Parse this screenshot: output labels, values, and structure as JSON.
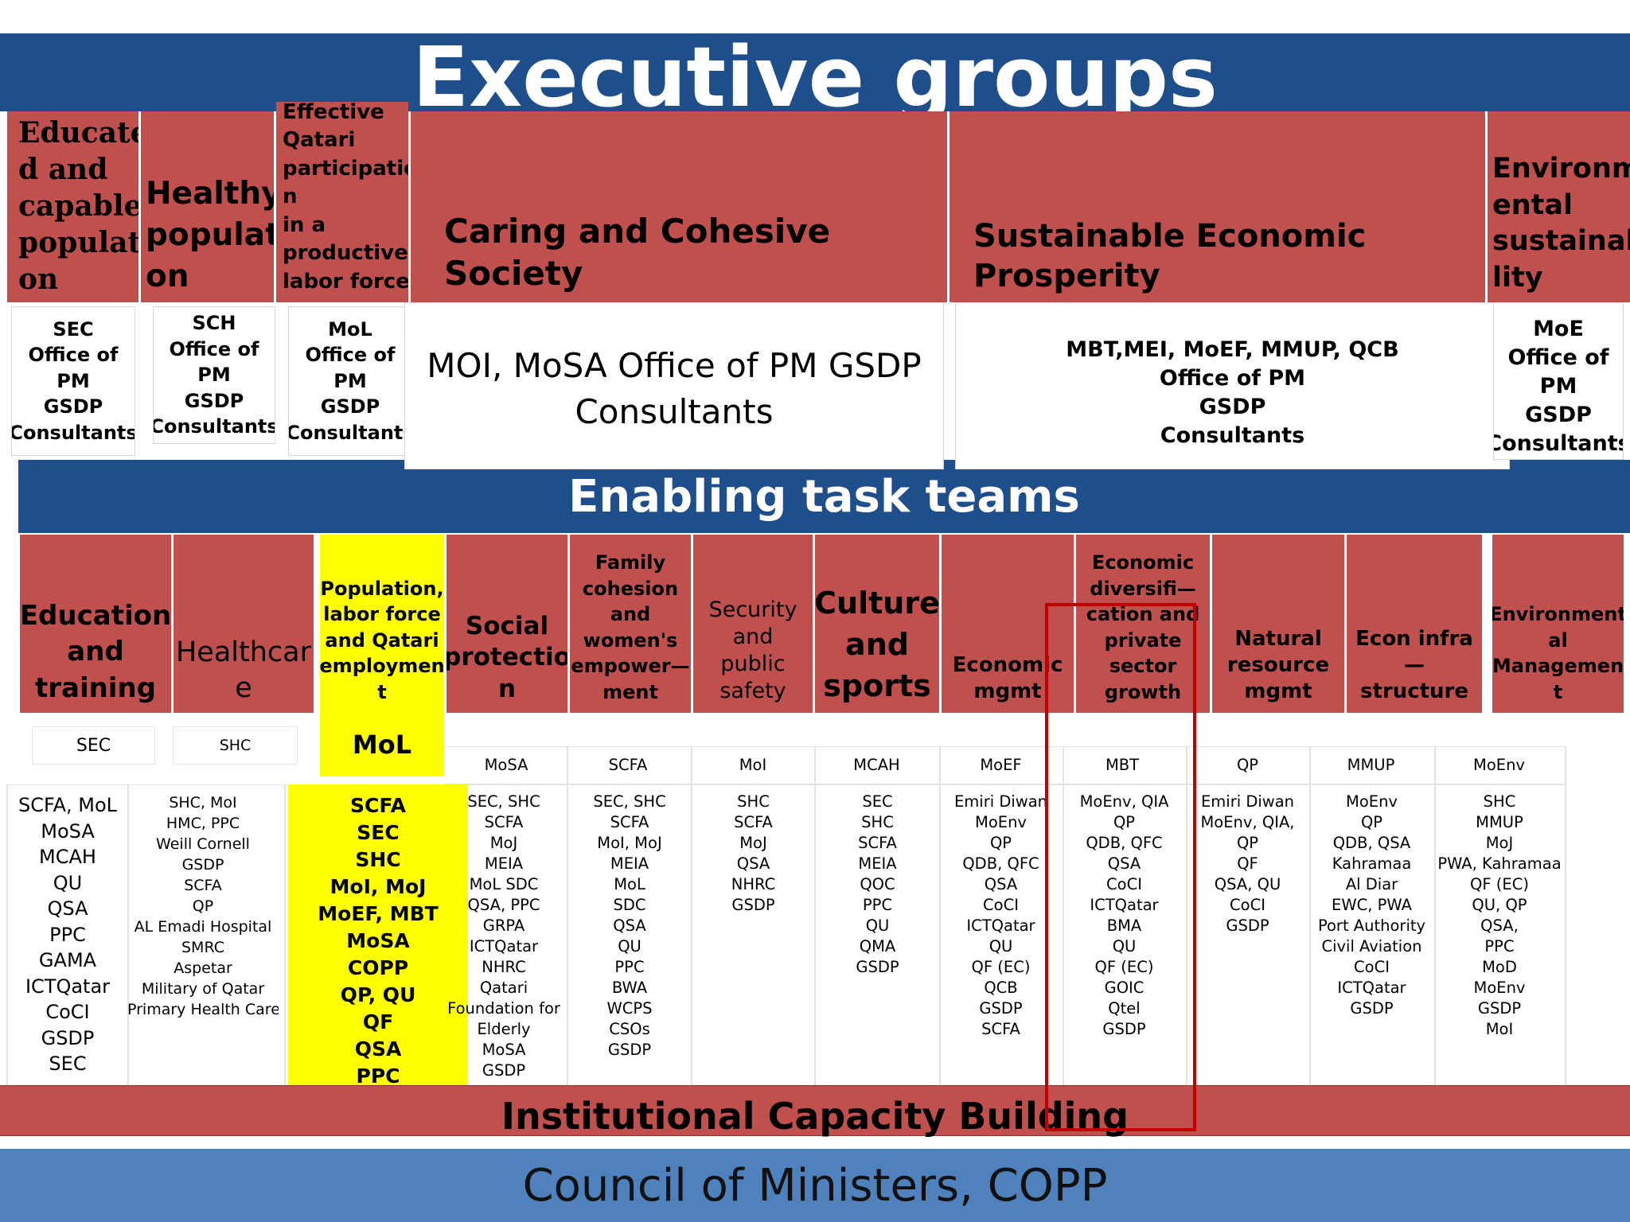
{
  "executive": {
    "title": "Executive groups",
    "groups": [
      {
        "title": [
          "Educate",
          "d and",
          "capable",
          "populati",
          "on"
        ],
        "members": [
          "SEC",
          "Office of",
          "PM",
          "GSDP",
          "Consultants"
        ]
      },
      {
        "title": [
          "Healthy",
          "populati",
          "on"
        ],
        "members": [
          "SCH",
          "Office of",
          "PM",
          "GSDP",
          "Consultants"
        ]
      },
      {
        "title": [
          "Effective",
          "Qatari",
          "participatio",
          "n",
          "in a",
          "productive",
          "labor force"
        ],
        "members": [
          "MoL",
          "Office of",
          "PM",
          "GSDP",
          "Consultants"
        ]
      },
      {
        "title": [
          "Caring and Cohesive Society"
        ],
        "members": [
          "MOI, MoSA Office of PM GSDP",
          "Consultants"
        ]
      },
      {
        "title": [
          "Sustainable Economic Prosperity"
        ],
        "members": [
          "MBT,MEI, MoEF, MMUP, QCB",
          "Office of PM",
          "GSDP",
          "Consultants"
        ]
      },
      {
        "title": [
          "Environm",
          "ental",
          "sustainabi",
          "lity"
        ],
        "members": [
          "MoE",
          "Office of",
          "PM",
          "GSDP",
          "Consultants"
        ]
      }
    ]
  },
  "enabling": {
    "title": "Enabling task teams",
    "teams": [
      {
        "title": [
          "Education",
          "and",
          "training"
        ],
        "lead": "SEC",
        "members": [
          "SCFA, MoL",
          "MoSA",
          "MCAH",
          "QU",
          "QSA",
          "PPC",
          "GAMA",
          "ICTQatar",
          "CoCI",
          "GSDP",
          "SEC"
        ]
      },
      {
        "title": [
          "Healthcar",
          "e"
        ],
        "lead": "SHC",
        "members": [
          "SHC, MoI",
          "HMC, PPC",
          "Weill Cornell",
          "GSDP",
          "SCFA",
          "QP",
          "AL Emadi Hospital",
          "SMRC",
          "Aspetar",
          "Military of Qatar",
          "Primary Health Care"
        ]
      },
      {
        "title": [
          "Population,",
          "labor force",
          "and Qatari",
          "employmen",
          "t"
        ],
        "lead": "MoL",
        "members": [
          "SCFA",
          "SEC",
          "SHC",
          "MoI, MoJ",
          "MoEF, MBT",
          "MoSA",
          "COPP",
          "QP, QU",
          "QF",
          "QSA",
          "PPC"
        ]
      },
      {
        "title": [
          "Social",
          "protectio",
          "n"
        ],
        "lead": "MoSA",
        "members": [
          "SEC, SHC",
          "SCFA",
          "MoJ",
          "MEIA",
          "MoL SDC",
          "QSA, PPC",
          "GRPA",
          "ICTQatar",
          "NHRC",
          "Qatari",
          "Foundation for",
          "Elderly",
          "MoSA",
          "GSDP"
        ]
      },
      {
        "title": [
          "Family",
          "cohesion",
          "and",
          "women's",
          "empower—",
          "ment"
        ],
        "lead": "SCFA",
        "members": [
          "SEC, SHC",
          "SCFA",
          "MoI, MoJ",
          "MEIA",
          "MoL",
          "SDC",
          "QSA",
          "QU",
          "PPC",
          "BWA",
          "WCPS",
          "CSOs",
          "GSDP"
        ]
      },
      {
        "title": [
          "Security",
          "and",
          "public",
          "safety"
        ],
        "lead": "MoI",
        "members": [
          "SHC",
          "SCFA",
          "MoJ",
          "QSA",
          "NHRC",
          "GSDP"
        ]
      },
      {
        "title": [
          "Culture",
          "and",
          "sports"
        ],
        "lead": "MCAH",
        "members": [
          "SEC",
          "SHC",
          "SCFA",
          "MEIA",
          "QOC",
          "PPC",
          "QU",
          "QMA",
          "GSDP"
        ]
      },
      {
        "title": [
          "Economic",
          "mgmt"
        ],
        "lead": "MoEF",
        "members": [
          "Emiri Diwan",
          "MoEnv",
          "QP",
          "QDB, QFC",
          "QSA",
          "CoCI",
          "ICTQatar",
          "QU",
          "QF (EC)",
          "QCB",
          "GSDP",
          "SCFA"
        ]
      },
      {
        "title": [
          "Economic",
          "diversifi—",
          "cation and",
          "private sector",
          "growth"
        ],
        "lead": "MBT",
        "members": [
          "MoEnv, QIA",
          "QP",
          "QDB, QFC",
          "QSA",
          "CoCI",
          "ICTQatar",
          "BMA",
          "QU",
          "QF (EC)",
          "GOIC",
          "Qtel",
          "GSDP"
        ]
      },
      {
        "title": [
          "Natural",
          "resource",
          "mgmt"
        ],
        "lead": "QP",
        "members": [
          "Emiri Diwan",
          "MoEnv, QIA,",
          "QP",
          "QF",
          "QSA, QU",
          "CoCI",
          "GSDP"
        ]
      },
      {
        "title": [
          "Econ infra—",
          "structure"
        ],
        "lead": "MMUP",
        "members": [
          "MoEnv",
          "QP",
          "QDB, QSA",
          "Kahramaa",
          "Al Diar",
          "EWC, PWA",
          "Port Authority",
          "Civil Aviation",
          "CoCI",
          "ICTQatar",
          "GSDP"
        ]
      },
      {
        "title": [
          "Environment",
          "al",
          "Managemen",
          "t"
        ],
        "lead": "MoEnv",
        "members": [
          "SHC",
          "MMUP",
          "MoJ",
          "PWA, Kahramaa",
          "QF (EC)",
          "QU, QP",
          "QSA,",
          "PPC",
          "MoD",
          "MoEnv",
          "GSDP",
          "MoI"
        ]
      }
    ]
  },
  "institutional": "Institutional Capacity Building",
  "council": "Council of Ministers, COPP",
  "colors": {
    "banner": "#1e4e8c",
    "header_red": "#c0504d",
    "highlight_yellow": "#ffff00",
    "council_blue": "#4f81bd",
    "annotation_red": "#c00000"
  }
}
